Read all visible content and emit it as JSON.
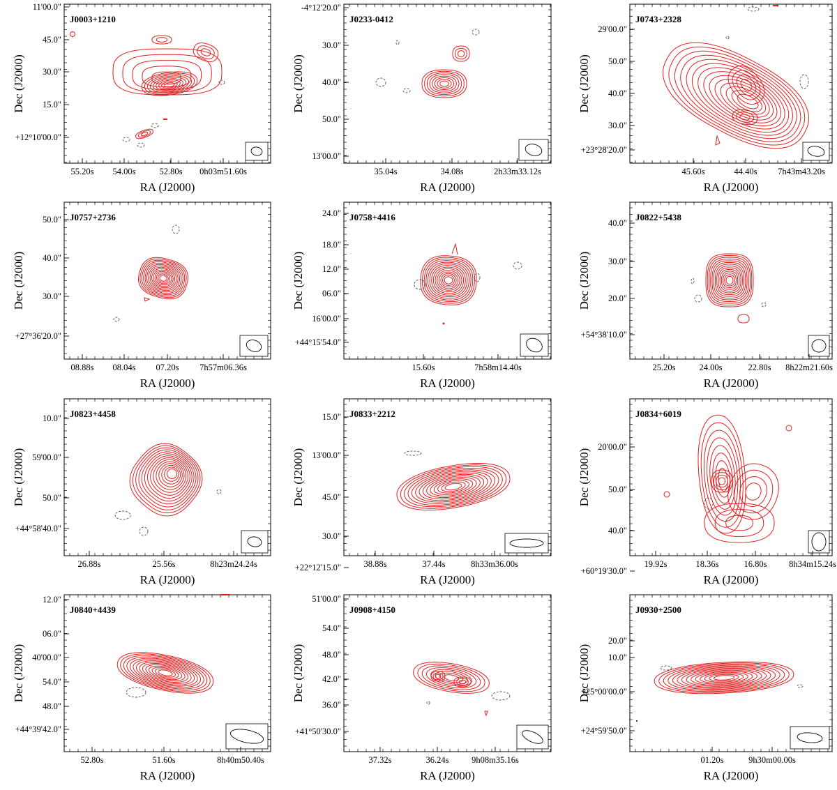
{
  "figure": {
    "x_axis_label": "RA (J2000)",
    "y_axis_label": "Dec (J2000)"
  },
  "colors": {
    "positive_contour": "#e02020",
    "negative_contour": "#555555",
    "axis": "#000000"
  },
  "chart_data": [
    {
      "type": "contour",
      "source": "J0003+1210",
      "xticks": [
        "55.20s",
        "54.00s",
        "52.80s",
        "0h03m51.60s"
      ],
      "yticks": [
        "11'00.0\"",
        "45.0\"",
        "30.0\"",
        "15.0\"",
        "+12°10'00.0\""
      ]
    },
    {
      "type": "contour",
      "source": "J0233-0412",
      "xticks": [
        "35.04s",
        "34.08s",
        "2h33m33.12s"
      ],
      "yticks": [
        "-4°12'20.0\"",
        "30.0\"",
        "40.0\"",
        "50.0\"",
        "13'00.0\""
      ]
    },
    {
      "type": "contour",
      "source": "J0743+2328",
      "xticks": [
        "45.60s",
        "44.40s",
        "7h43m43.20s"
      ],
      "yticks": [
        "29'00.0\"",
        "50.0\"",
        "40.0\"",
        "30.0\"",
        "+23°28'20.0\""
      ]
    },
    {
      "type": "contour",
      "source": "J0757+2736",
      "xticks": [
        "08.88s",
        "08.04s",
        "07.20s",
        "7h57m06.36s"
      ],
      "yticks": [
        "50.0\"",
        "40.0\"",
        "30.0\"",
        "+27°36'20.0\""
      ]
    },
    {
      "type": "contour",
      "source": "J0758+4416",
      "xticks": [
        "15.60s",
        "7h58m14.40s"
      ],
      "yticks": [
        "24.0\"",
        "18.0\"",
        "12.0\"",
        "06.0\"",
        "16'00.0\"",
        "+44°15'54.0\""
      ]
    },
    {
      "type": "contour",
      "source": "J0822+5438",
      "xticks": [
        "25.20s",
        "24.00s",
        "22.80s",
        "8h22m21.60s"
      ],
      "yticks": [
        "40.0\"",
        "30.0\"",
        "20.0\"",
        "+54°38'10.0\""
      ]
    },
    {
      "type": "contour",
      "source": "J0823+4458",
      "xticks": [
        "26.88s",
        "25.56s",
        "8h23m24.24s"
      ],
      "yticks": [
        "10.0\"",
        "59'00.0\"",
        "50.0\"",
        "+44°58'40.0\""
      ]
    },
    {
      "type": "contour",
      "source": "J0833+2212",
      "xticks": [
        "38.88s",
        "37.44s",
        "8h33m36.00s"
      ],
      "yticks": [
        "15.0\"",
        "13'00.0\"",
        "45.0\"",
        "30.0\"",
        "+22°12'15.0\""
      ]
    },
    {
      "type": "contour",
      "source": "J0834+6019",
      "xticks": [
        "19.92s",
        "18.36s",
        "16.80s",
        "8h34m15.24s"
      ],
      "yticks": [
        "20'00.0\"",
        "50.0\"",
        "40.0\"",
        "+60°19'30.0\""
      ]
    },
    {
      "type": "contour",
      "source": "J0840+4439",
      "xticks": [
        "52.80s",
        "51.60s",
        "8h40m50.40s"
      ],
      "yticks": [
        "12.0\"",
        "06.0\"",
        "40'00.0\"",
        "54.0\"",
        "48.0\"",
        "+44°39'42.0\""
      ]
    },
    {
      "type": "contour",
      "source": "J0908+4150",
      "xticks": [
        "37.32s",
        "36.24s",
        "9h08m35.16s"
      ],
      "yticks": [
        "51'00.0\"",
        "54.0\"",
        "48.0\"",
        "42.0\"",
        "36.0\"",
        "+41°50'30.0\""
      ]
    },
    {
      "type": "contour",
      "source": "J0930+2500",
      "xticks": [
        "01.20s",
        "9h30m00.00s"
      ],
      "yticks": [
        "20.0\"",
        "10.0\"",
        "+25°00'00.0\"",
        "+24°59'50.0\""
      ]
    }
  ]
}
